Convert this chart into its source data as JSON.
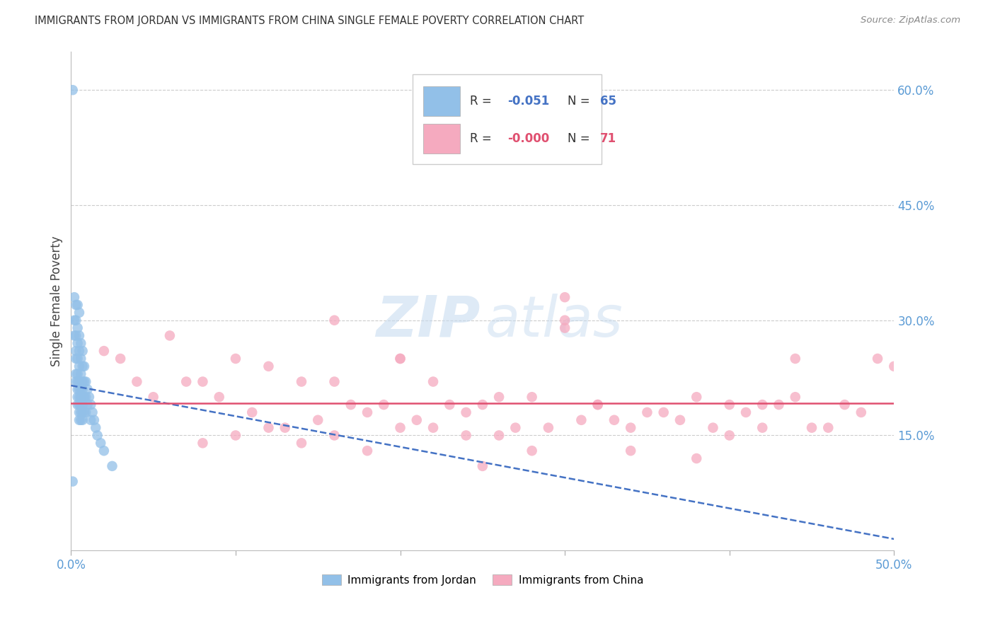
{
  "title": "IMMIGRANTS FROM JORDAN VS IMMIGRANTS FROM CHINA SINGLE FEMALE POVERTY CORRELATION CHART",
  "source": "Source: ZipAtlas.com",
  "ylabel": "Single Female Poverty",
  "jordan_R": -0.051,
  "jordan_N": 65,
  "china_R": -0.0,
  "china_N": 71,
  "jordan_color": "#92C0E8",
  "china_color": "#F5AABF",
  "jordan_line_color": "#4472C4",
  "china_line_color": "#E05070",
  "background_color": "#FFFFFF",
  "grid_color": "#CCCCCC",
  "right_axis_color": "#5B9BD5",
  "jordan_scatter_x": [
    0.001,
    0.002,
    0.002,
    0.002,
    0.003,
    0.003,
    0.003,
    0.003,
    0.003,
    0.003,
    0.003,
    0.004,
    0.004,
    0.004,
    0.004,
    0.004,
    0.004,
    0.004,
    0.004,
    0.004,
    0.005,
    0.005,
    0.005,
    0.005,
    0.005,
    0.005,
    0.005,
    0.005,
    0.005,
    0.005,
    0.006,
    0.006,
    0.006,
    0.006,
    0.006,
    0.006,
    0.006,
    0.006,
    0.007,
    0.007,
    0.007,
    0.007,
    0.007,
    0.007,
    0.007,
    0.008,
    0.008,
    0.008,
    0.008,
    0.009,
    0.009,
    0.009,
    0.01,
    0.01,
    0.011,
    0.012,
    0.012,
    0.013,
    0.014,
    0.015,
    0.016,
    0.018,
    0.02,
    0.025,
    0.001
  ],
  "jordan_scatter_y": [
    0.6,
    0.33,
    0.3,
    0.28,
    0.32,
    0.3,
    0.28,
    0.26,
    0.25,
    0.23,
    0.22,
    0.32,
    0.29,
    0.27,
    0.25,
    0.23,
    0.22,
    0.21,
    0.2,
    0.19,
    0.31,
    0.28,
    0.26,
    0.24,
    0.22,
    0.21,
    0.2,
    0.19,
    0.18,
    0.17,
    0.27,
    0.25,
    0.23,
    0.21,
    0.2,
    0.19,
    0.18,
    0.17,
    0.26,
    0.24,
    0.22,
    0.21,
    0.19,
    0.18,
    0.17,
    0.24,
    0.22,
    0.2,
    0.18,
    0.22,
    0.2,
    0.18,
    0.21,
    0.19,
    0.2,
    0.19,
    0.17,
    0.18,
    0.17,
    0.16,
    0.15,
    0.14,
    0.13,
    0.11,
    0.09
  ],
  "china_scatter_x": [
    0.02,
    0.03,
    0.04,
    0.05,
    0.06,
    0.07,
    0.08,
    0.09,
    0.1,
    0.11,
    0.12,
    0.13,
    0.14,
    0.15,
    0.16,
    0.17,
    0.18,
    0.19,
    0.2,
    0.21,
    0.22,
    0.23,
    0.24,
    0.25,
    0.26,
    0.27,
    0.28,
    0.29,
    0.3,
    0.31,
    0.32,
    0.33,
    0.34,
    0.35,
    0.36,
    0.37,
    0.38,
    0.39,
    0.4,
    0.41,
    0.42,
    0.43,
    0.44,
    0.45,
    0.46,
    0.47,
    0.48,
    0.49,
    0.5,
    0.08,
    0.1,
    0.12,
    0.14,
    0.16,
    0.18,
    0.2,
    0.22,
    0.24,
    0.26,
    0.28,
    0.3,
    0.32,
    0.34,
    0.38,
    0.4,
    0.42,
    0.44,
    0.3,
    0.16,
    0.2,
    0.25
  ],
  "china_scatter_y": [
    0.26,
    0.25,
    0.22,
    0.2,
    0.28,
    0.22,
    0.22,
    0.2,
    0.25,
    0.18,
    0.24,
    0.16,
    0.22,
    0.17,
    0.22,
    0.19,
    0.18,
    0.19,
    0.25,
    0.17,
    0.22,
    0.19,
    0.18,
    0.19,
    0.2,
    0.16,
    0.2,
    0.16,
    0.33,
    0.17,
    0.19,
    0.17,
    0.16,
    0.18,
    0.18,
    0.17,
    0.2,
    0.16,
    0.19,
    0.18,
    0.19,
    0.19,
    0.2,
    0.16,
    0.16,
    0.19,
    0.18,
    0.25,
    0.24,
    0.14,
    0.15,
    0.16,
    0.14,
    0.15,
    0.13,
    0.16,
    0.16,
    0.15,
    0.15,
    0.13,
    0.3,
    0.19,
    0.13,
    0.12,
    0.15,
    0.16,
    0.25,
    0.29,
    0.3,
    0.25,
    0.11
  ]
}
